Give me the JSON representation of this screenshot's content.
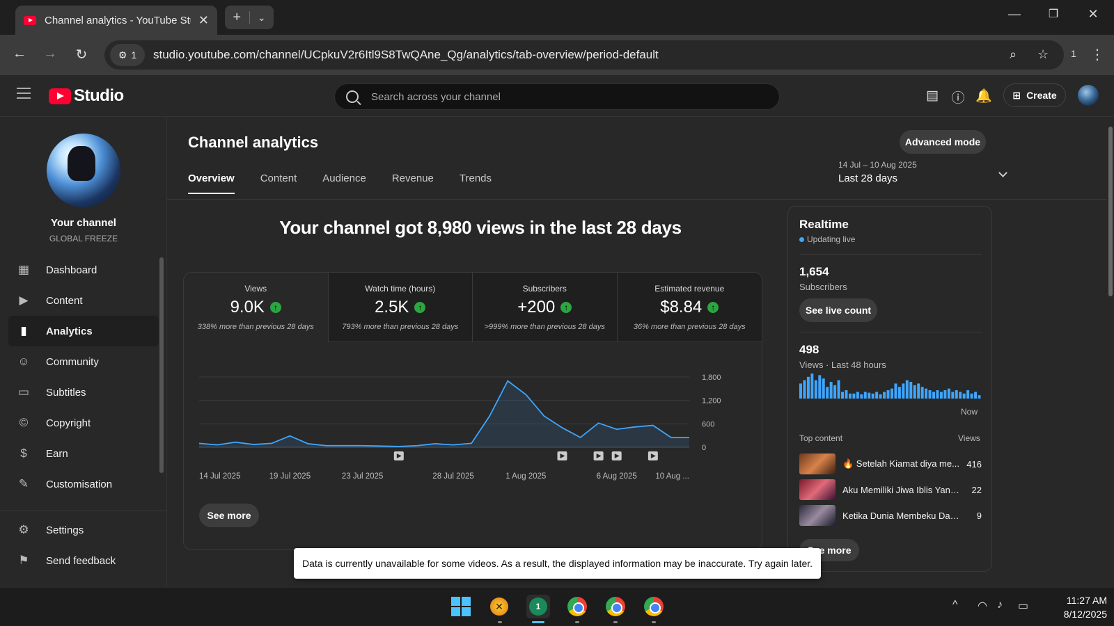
{
  "browser": {
    "tab_title": "Channel analytics - YouTube Studio",
    "site_info_count": "1",
    "url": "studio.youtube.com/channel/UCpkuV2r6Itl9S8TwQAne_Qg/analytics/tab-overview/period-default",
    "extensions_count": "1"
  },
  "header": {
    "logo_text": "Studio",
    "search_placeholder": "Search across your channel",
    "create_label": "Create"
  },
  "sidebar": {
    "channel_name": "Your channel",
    "channel_handle": "GLOBAL FREEZE",
    "items": [
      {
        "label": "Dashboard",
        "icon": "dashboard-icon"
      },
      {
        "label": "Content",
        "icon": "content-icon"
      },
      {
        "label": "Analytics",
        "icon": "analytics-icon",
        "active": true
      },
      {
        "label": "Community",
        "icon": "community-icon"
      },
      {
        "label": "Subtitles",
        "icon": "subtitles-icon"
      },
      {
        "label": "Copyright",
        "icon": "copyright-icon"
      },
      {
        "label": "Earn",
        "icon": "earn-icon"
      },
      {
        "label": "Customisation",
        "icon": "customisation-icon"
      }
    ],
    "bottom_items": [
      {
        "label": "Settings",
        "icon": "settings-icon"
      },
      {
        "label": "Send feedback",
        "icon": "feedback-icon"
      }
    ]
  },
  "main": {
    "title": "Channel analytics",
    "advanced_mode": "Advanced mode",
    "tabs": [
      "Overview",
      "Content",
      "Audience",
      "Revenue",
      "Trends"
    ],
    "date_range": {
      "dates": "14 Jul – 10 Aug 2025",
      "label": "Last 28 days"
    },
    "headline": "Your channel got 8,980 views in the last 28 days",
    "metrics": [
      {
        "label": "Views",
        "value": "9.0K",
        "compare": "338% more than previous 28 days"
      },
      {
        "label": "Watch time (hours)",
        "value": "2.5K",
        "compare": "793% more than previous 28 days"
      },
      {
        "label": "Subscribers",
        "value": "+200",
        "compare": ">999% more than previous 28 days"
      },
      {
        "label": "Estimated revenue",
        "value": "$8.84",
        "compare": "36% more than previous 28 days"
      }
    ],
    "see_more": "See more",
    "toast": "Data is currently unavailable for some videos. As a result, the displayed information may be inaccurate. Try again later."
  },
  "chart_data": {
    "type": "area",
    "x": [
      "14 Jul 2025",
      "15 Jul",
      "16 Jul",
      "17 Jul",
      "18 Jul",
      "19 Jul",
      "20 Jul",
      "21 Jul",
      "22 Jul",
      "23 Jul",
      "24 Jul",
      "25 Jul",
      "26 Jul",
      "27 Jul",
      "28 Jul",
      "29 Jul",
      "30 Jul",
      "31 Jul",
      "1 Aug",
      "2 Aug",
      "3 Aug",
      "4 Aug",
      "5 Aug",
      "6 Aug",
      "7 Aug",
      "8 Aug",
      "9 Aug",
      "10 Aug"
    ],
    "tick_labels": [
      "14 Jul 2025",
      "19 Jul 2025",
      "23 Jul 2025",
      "28 Jul 2025",
      "1 Aug 2025",
      "6 Aug 2025",
      "10 Aug ..."
    ],
    "tick_indices": [
      0,
      5,
      9,
      14,
      18,
      23,
      27
    ],
    "series": [
      {
        "values": [
          100,
          60,
          130,
          70,
          100,
          290,
          90,
          40,
          40,
          40,
          30,
          20,
          40,
          90,
          60,
          100,
          800,
          1700,
          1350,
          800,
          500,
          250,
          620,
          460,
          520,
          560,
          250,
          250
        ]
      }
    ],
    "y_ticks": [
      0,
      600,
      1200,
      1800
    ],
    "ylim": [
      0,
      1800
    ],
    "video_markers": [
      11,
      20,
      22,
      23,
      25
    ],
    "line_color": "#3ea6ff",
    "grid": true
  },
  "realtime": {
    "title": "Realtime",
    "status": "Updating live",
    "subscribers_value": "1,654",
    "subscribers_label": "Subscribers",
    "live_count_btn": "See live count",
    "views_value": "498",
    "views_label": "Views · Last 48 hours",
    "now_label": "Now",
    "top_content_label": "Top content",
    "views_col": "Views",
    "hourly_views": [
      18,
      22,
      26,
      30,
      22,
      28,
      24,
      14,
      20,
      16,
      22,
      8,
      10,
      6,
      6,
      8,
      5,
      8,
      7,
      6,
      8,
      5,
      8,
      10,
      12,
      18,
      14,
      18,
      22,
      20,
      16,
      18,
      14,
      12,
      10,
      8,
      10,
      8,
      10,
      12,
      8,
      10,
      8,
      6,
      10,
      6,
      8,
      4
    ],
    "top_content": [
      {
        "title": "🔥 Setelah Kiamat diya me...",
        "views": "416"
      },
      {
        "title": "Aku Memiliki Jiwa Iblis Yang...",
        "views": "22"
      },
      {
        "title": "Ketika Dunia Membeku Dan H...",
        "views": "9"
      }
    ],
    "see_more": "See more"
  },
  "taskbar": {
    "time": "11:27 AM",
    "date": "8/12/2025",
    "badge": "1"
  },
  "colors": {
    "accent": "#3ea6ff",
    "up_green": "#2ba640",
    "yt_red": "#ff0033"
  }
}
